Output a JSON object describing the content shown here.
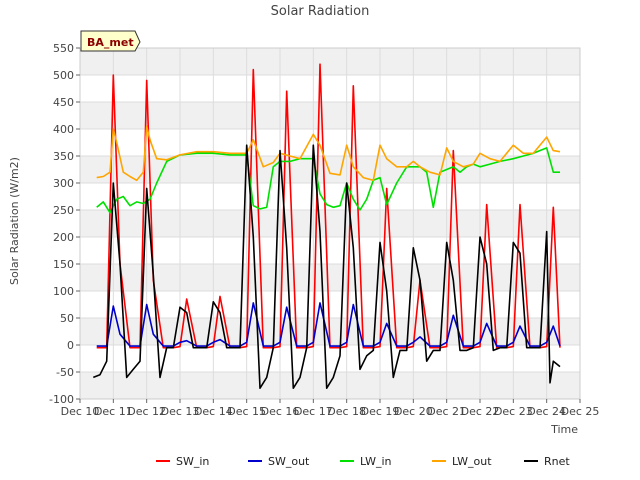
{
  "chart_data": {
    "type": "line",
    "title": "Solar Radiation",
    "xlabel": "Time",
    "ylabel": "Solar Radiation (W/m2)",
    "site_badge": "BA_met",
    "x_range": [
      10,
      25
    ],
    "ylim": [
      -100,
      550
    ],
    "x_tick_labels": [
      "Dec 10",
      "Dec 11",
      "Dec 12",
      "Dec 13",
      "Dec 14",
      "Dec 15",
      "Dec 16",
      "Dec 17",
      "Dec 18",
      "Dec 19",
      "Dec 20",
      "Dec 21",
      "Dec 22",
      "Dec 23",
      "Dec 24",
      "Dec 25"
    ],
    "y_ticks": [
      -100,
      -50,
      0,
      50,
      100,
      150,
      200,
      250,
      300,
      350,
      400,
      450,
      500,
      550
    ],
    "grid": true,
    "legend_position": "bottom",
    "series": [
      {
        "name": "SW_in",
        "color": "#ff0000",
        "x": [
          10.5,
          10.8,
          11.0,
          11.2,
          11.5,
          11.8,
          12.0,
          12.2,
          12.5,
          12.8,
          13.0,
          13.2,
          13.5,
          13.8,
          14.0,
          14.2,
          14.5,
          14.8,
          15.0,
          15.2,
          15.5,
          15.8,
          16.0,
          16.2,
          16.5,
          16.8,
          17.0,
          17.2,
          17.5,
          17.8,
          18.0,
          18.2,
          18.5,
          18.8,
          19.0,
          19.2,
          19.5,
          19.8,
          20.0,
          20.2,
          20.5,
          20.8,
          21.0,
          21.2,
          21.5,
          21.8,
          22.0,
          22.2,
          22.5,
          22.8,
          23.0,
          23.2,
          23.5,
          23.8,
          24.0,
          24.2,
          24.4
        ],
        "values": [
          -5,
          -5,
          500,
          150,
          -5,
          -5,
          490,
          120,
          -5,
          -5,
          -3,
          85,
          -5,
          -5,
          -3,
          90,
          -5,
          -5,
          -3,
          510,
          -5,
          -5,
          -3,
          470,
          -5,
          -5,
          -3,
          520,
          -5,
          -5,
          -3,
          480,
          -5,
          -5,
          -3,
          290,
          -5,
          -5,
          -3,
          120,
          -5,
          -5,
          -3,
          360,
          -5,
          -5,
          -3,
          260,
          -5,
          -5,
          -3,
          260,
          -5,
          -5,
          -3,
          255,
          -5
        ]
      },
      {
        "name": "SW_out",
        "color": "#0000cc",
        "x": [
          10.5,
          10.8,
          11.0,
          11.2,
          11.5,
          11.8,
          12.0,
          12.2,
          12.5,
          12.8,
          13.0,
          13.2,
          13.5,
          13.8,
          14.0,
          14.2,
          14.5,
          14.8,
          15.0,
          15.2,
          15.5,
          15.8,
          16.0,
          16.2,
          16.5,
          16.8,
          17.0,
          17.2,
          17.5,
          17.8,
          18.0,
          18.2,
          18.5,
          18.8,
          19.0,
          19.2,
          19.5,
          19.8,
          20.0,
          20.2,
          20.5,
          20.8,
          21.0,
          21.2,
          21.5,
          21.8,
          22.0,
          22.2,
          22.5,
          22.8,
          23.0,
          23.2,
          23.5,
          23.8,
          24.0,
          24.2,
          24.4
        ],
        "values": [
          -2,
          -2,
          72,
          20,
          -2,
          -2,
          75,
          20,
          -2,
          -2,
          5,
          8,
          -2,
          -2,
          5,
          10,
          -2,
          -2,
          5,
          78,
          -2,
          -2,
          5,
          70,
          -2,
          -2,
          5,
          78,
          -2,
          -2,
          5,
          75,
          -2,
          -2,
          5,
          40,
          -2,
          -2,
          5,
          15,
          -2,
          -2,
          5,
          55,
          -2,
          -2,
          5,
          40,
          -2,
          -2,
          5,
          35,
          -2,
          -2,
          5,
          35,
          -2
        ]
      },
      {
        "name": "LW_in",
        "color": "#00e000",
        "x": [
          10.5,
          10.7,
          10.9,
          11.1,
          11.3,
          11.5,
          11.7,
          11.9,
          12.1,
          12.3,
          12.6,
          13.0,
          13.5,
          14.0,
          14.5,
          15.0,
          15.2,
          15.4,
          15.6,
          15.8,
          16.0,
          16.3,
          16.6,
          17.0,
          17.2,
          17.4,
          17.6,
          17.8,
          18.0,
          18.2,
          18.4,
          18.6,
          18.8,
          19.0,
          19.2,
          19.5,
          19.8,
          20.0,
          20.2,
          20.4,
          20.6,
          20.8,
          21.0,
          21.2,
          21.4,
          21.6,
          21.8,
          22.0,
          22.3,
          22.6,
          23.0,
          23.3,
          23.6,
          24.0,
          24.2,
          24.4
        ],
        "values": [
          255,
          265,
          245,
          270,
          275,
          258,
          265,
          262,
          270,
          300,
          340,
          352,
          355,
          355,
          352,
          352,
          258,
          252,
          255,
          330,
          340,
          340,
          345,
          345,
          280,
          260,
          255,
          258,
          300,
          270,
          250,
          270,
          305,
          310,
          260,
          300,
          330,
          330,
          330,
          320,
          255,
          320,
          325,
          330,
          320,
          330,
          335,
          330,
          335,
          340,
          345,
          350,
          355,
          365,
          320,
          320
        ]
      },
      {
        "name": "LW_out",
        "color": "#ffa500",
        "x": [
          10.5,
          10.7,
          10.9,
          11.0,
          11.1,
          11.3,
          11.5,
          11.7,
          11.9,
          12.0,
          12.1,
          12.3,
          12.6,
          13.0,
          13.5,
          14.0,
          14.5,
          15.0,
          15.2,
          15.5,
          15.8,
          16.0,
          16.3,
          16.6,
          17.0,
          17.2,
          17.5,
          17.8,
          18.0,
          18.2,
          18.5,
          18.8,
          19.0,
          19.2,
          19.5,
          19.8,
          20.0,
          20.2,
          20.5,
          20.8,
          21.0,
          21.2,
          21.5,
          21.8,
          22.0,
          22.3,
          22.6,
          23.0,
          23.3,
          23.6,
          24.0,
          24.2,
          24.4
        ],
        "values": [
          310,
          312,
          320,
          400,
          375,
          320,
          312,
          305,
          320,
          405,
          380,
          345,
          343,
          352,
          358,
          358,
          355,
          355,
          380,
          330,
          338,
          355,
          350,
          345,
          390,
          370,
          318,
          315,
          370,
          330,
          310,
          305,
          370,
          345,
          330,
          330,
          340,
          330,
          320,
          315,
          365,
          340,
          330,
          335,
          355,
          345,
          340,
          370,
          355,
          355,
          385,
          360,
          358
        ]
      },
      {
        "name": "Rnet",
        "color": "#000000",
        "x": [
          10.4,
          10.6,
          10.8,
          11.0,
          11.2,
          11.4,
          11.6,
          11.8,
          12.0,
          12.2,
          12.4,
          12.6,
          12.8,
          13.0,
          13.2,
          13.4,
          13.6,
          13.8,
          14.0,
          14.2,
          14.4,
          14.6,
          14.8,
          15.0,
          15.2,
          15.4,
          15.6,
          15.8,
          16.0,
          16.2,
          16.4,
          16.6,
          16.8,
          17.0,
          17.2,
          17.4,
          17.6,
          17.8,
          18.0,
          18.2,
          18.4,
          18.6,
          18.8,
          19.0,
          19.2,
          19.4,
          19.6,
          19.8,
          20.0,
          20.2,
          20.4,
          20.6,
          20.8,
          21.0,
          21.2,
          21.4,
          21.6,
          21.8,
          22.0,
          22.2,
          22.4,
          22.6,
          22.8,
          23.0,
          23.2,
          23.4,
          23.6,
          23.8,
          24.0,
          24.1,
          24.2,
          24.4
        ],
        "values": [
          -60,
          -55,
          -30,
          300,
          150,
          -60,
          -45,
          -30,
          290,
          130,
          -60,
          -5,
          -5,
          70,
          60,
          -5,
          -5,
          -5,
          80,
          60,
          -5,
          -5,
          -5,
          370,
          200,
          -80,
          -60,
          -5,
          360,
          180,
          -80,
          -60,
          -5,
          370,
          210,
          -80,
          -60,
          -20,
          300,
          180,
          -45,
          -20,
          -10,
          190,
          100,
          -60,
          -10,
          -10,
          180,
          120,
          -30,
          -10,
          -10,
          190,
          120,
          -10,
          -10,
          -5,
          200,
          150,
          -10,
          -5,
          -5,
          190,
          170,
          -5,
          -5,
          -5,
          210,
          -70,
          -30,
          -40
        ]
      }
    ]
  }
}
